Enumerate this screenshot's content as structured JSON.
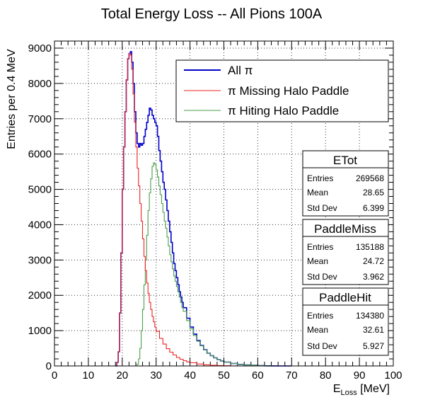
{
  "chart_data": {
    "type": "line",
    "title": "Total Energy Loss -- All Pions 100A",
    "xlabel_main": "E",
    "xlabel_sub": "Loss",
    "xlabel_unit": " [MeV]",
    "ylabel": "Entries per 0.4 MeV",
    "xlim": [
      0,
      100
    ],
    "ylim": [
      0,
      9200
    ],
    "x_ticks": [
      0,
      10,
      20,
      30,
      40,
      50,
      60,
      70,
      80,
      90,
      100
    ],
    "x_tick_labels": [
      "0",
      "10",
      "20",
      "30",
      "40",
      "50",
      "60",
      "70",
      "80",
      "90",
      "100"
    ],
    "y_ticks": [
      0,
      1000,
      2000,
      3000,
      4000,
      5000,
      6000,
      7000,
      8000,
      9000
    ],
    "y_tick_labels": [
      "0",
      "1000",
      "2000",
      "3000",
      "4000",
      "5000",
      "6000",
      "7000",
      "8000",
      "9000"
    ],
    "grid": true,
    "legend_position": "top-right",
    "series": [
      {
        "name": "All π",
        "color": "#0000cc",
        "x": [
          18,
          18.4,
          18.8,
          19.2,
          19.6,
          20,
          20.4,
          20.8,
          21.2,
          21.6,
          22,
          22.4,
          22.8,
          23.2,
          23.6,
          24,
          24.4,
          24.8,
          25.2,
          25.6,
          26,
          26.4,
          26.8,
          27.2,
          27.6,
          28,
          28.4,
          28.8,
          29.2,
          29.6,
          30,
          30.4,
          30.8,
          31.2,
          31.6,
          32,
          32.4,
          32.8,
          33.2,
          33.6,
          34,
          34.4,
          34.8,
          35.2,
          35.6,
          36,
          36.4,
          36.8,
          37.2,
          37.6,
          38,
          39,
          40,
          41,
          42,
          43,
          44,
          45,
          46,
          47,
          48,
          49,
          50,
          52,
          54,
          56,
          58,
          60,
          62,
          64,
          66,
          70
        ],
        "y": [
          0,
          100,
          400,
          1500,
          3200,
          5000,
          6200,
          7200,
          8100,
          8700,
          8850,
          8900,
          8600,
          8000,
          7200,
          6600,
          6300,
          6200,
          6300,
          6250,
          6300,
          6500,
          6700,
          6900,
          7100,
          7300,
          7250,
          7100,
          7000,
          6900,
          6800,
          6500,
          6100,
          5800,
          5500,
          5200,
          5000,
          4700,
          4400,
          4100,
          3800,
          3500,
          3200,
          2900,
          2700,
          2500,
          2300,
          2100,
          1950,
          1800,
          1650,
          1350,
          1100,
          900,
          720,
          580,
          460,
          360,
          290,
          230,
          180,
          140,
          110,
          70,
          45,
          30,
          18,
          10,
          5,
          2,
          1,
          0
        ]
      },
      {
        "name": "π Missing Halo Paddle",
        "color": "#ee2222",
        "x": [
          18,
          18.4,
          18.8,
          19.2,
          19.6,
          20,
          20.4,
          20.8,
          21.2,
          21.6,
          22,
          22.4,
          22.8,
          23.2,
          23.6,
          24,
          24.4,
          24.8,
          25.2,
          25.6,
          26,
          26.4,
          26.8,
          27.2,
          27.6,
          28,
          28.4,
          28.8,
          29.2,
          29.6,
          30,
          31,
          32,
          33,
          34,
          35,
          36,
          37,
          38,
          39,
          40,
          42,
          44,
          46,
          48,
          50,
          52,
          54
        ],
        "y": [
          0,
          100,
          400,
          1500,
          3200,
          5000,
          6200,
          7200,
          8100,
          8700,
          8850,
          8800,
          8400,
          7700,
          6900,
          6200,
          5600,
          5100,
          4600,
          4100,
          3600,
          3100,
          2700,
          2350,
          2050,
          1800,
          1600,
          1400,
          1250,
          1100,
          980,
          780,
          620,
          490,
          390,
          310,
          240,
          190,
          150,
          115,
          90,
          55,
          33,
          20,
          12,
          7,
          3,
          0
        ]
      },
      {
        "name": "π Hiting Halo Paddle",
        "color": "#4a9e4a",
        "x": [
          24,
          24.4,
          24.8,
          25.2,
          25.6,
          26,
          26.4,
          26.8,
          27.2,
          27.6,
          28,
          28.4,
          28.8,
          29.2,
          29.6,
          30,
          30.4,
          30.8,
          31.2,
          31.6,
          32,
          32.4,
          32.8,
          33.2,
          33.6,
          34,
          34.4,
          34.8,
          35.2,
          35.6,
          36,
          36.4,
          36.8,
          37.2,
          37.6,
          38,
          39,
          40,
          41,
          42,
          43,
          44,
          45,
          46,
          47,
          48,
          49,
          50,
          52,
          54,
          56,
          58,
          60,
          62,
          64,
          66,
          70
        ],
        "y": [
          0,
          50,
          200,
          500,
          1000,
          1600,
          2300,
          3000,
          3700,
          4400,
          4900,
          5300,
          5650,
          5750,
          5700,
          5550,
          5350,
          5100,
          4850,
          4600,
          4350,
          4100,
          3900,
          3650,
          3400,
          3150,
          2950,
          2750,
          2550,
          2400,
          2250,
          2100,
          1950,
          1800,
          1650,
          1550,
          1280,
          1050,
          860,
          700,
          570,
          455,
          360,
          290,
          230,
          180,
          140,
          110,
          70,
          45,
          30,
          18,
          10,
          5,
          2,
          1,
          0
        ]
      }
    ],
    "stats_boxes": [
      {
        "name": "ETot",
        "rows": [
          {
            "label": "Entries",
            "value": "269568"
          },
          {
            "label": "Mean",
            "value": "28.65"
          },
          {
            "label": "Std Dev",
            "value": "6.399"
          }
        ]
      },
      {
        "name": "PaddleMiss",
        "rows": [
          {
            "label": "Entries",
            "value": "135188"
          },
          {
            "label": "Mean",
            "value": "24.72"
          },
          {
            "label": "Std Dev",
            "value": "3.962"
          }
        ]
      },
      {
        "name": "PaddleHit",
        "rows": [
          {
            "label": "Entries",
            "value": "134380"
          },
          {
            "label": "Mean",
            "value": "32.61"
          },
          {
            "label": "Std Dev",
            "value": "5.927"
          }
        ]
      }
    ]
  }
}
